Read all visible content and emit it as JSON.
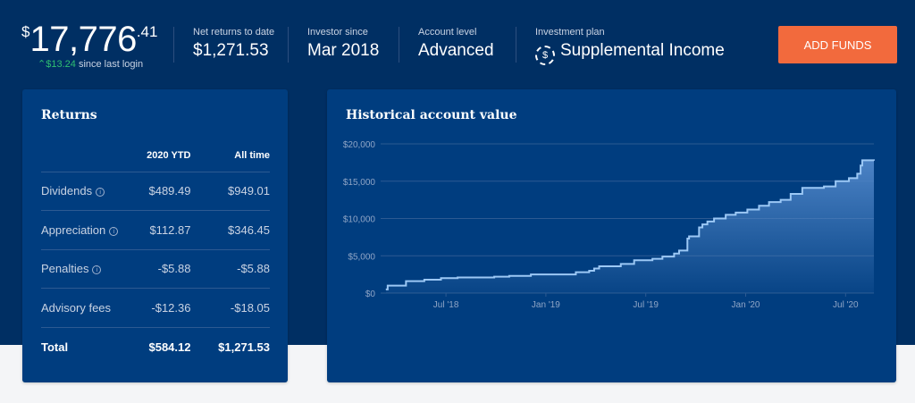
{
  "header": {
    "balance": {
      "currency": "$",
      "whole": "17,776",
      "cents": ".41"
    },
    "delta": {
      "value": "$13.24",
      "label": "since last login"
    },
    "stats": [
      {
        "label": "Net returns to date",
        "value": "$1,271.53"
      },
      {
        "label": "Investor since",
        "value": "Mar 2018"
      },
      {
        "label": "Account level",
        "value": "Advanced"
      },
      {
        "label": "Investment plan",
        "value": "Supplemental Income",
        "icon": "dollar-cycle-icon"
      }
    ],
    "add_funds_label": "ADD FUNDS"
  },
  "returns": {
    "title": "Returns",
    "columns": [
      "",
      "2020 YTD",
      "All time"
    ],
    "rows": [
      {
        "label": "Dividends",
        "info": true,
        "ytd": "$489.49",
        "all": "$949.01"
      },
      {
        "label": "Appreciation",
        "info": true,
        "ytd": "$112.87",
        "all": "$346.45"
      },
      {
        "label": "Penalties",
        "info": true,
        "ytd": "-$5.88",
        "all": "-$5.88"
      },
      {
        "label": "Advisory fees",
        "info": false,
        "ytd": "-$12.36",
        "all": "-$18.05"
      }
    ],
    "total": {
      "label": "Total",
      "ytd": "$584.12",
      "all": "$1,271.53"
    }
  },
  "chart_data": {
    "type": "area",
    "title": "Historical account value",
    "xlabel": "",
    "ylabel": "",
    "x_unit": "months since Jan 2018",
    "xlim": [
      2.4,
      31.7
    ],
    "ylim": [
      0,
      20000
    ],
    "yticks": [
      {
        "v": 0,
        "label": "$0"
      },
      {
        "v": 5000,
        "label": "$5,000"
      },
      {
        "v": 10000,
        "label": "$10,000"
      },
      {
        "v": 15000,
        "label": "$15,000"
      },
      {
        "v": 20000,
        "label": "$20,000"
      }
    ],
    "xticks": [
      {
        "v": 6,
        "label": "Jul '18"
      },
      {
        "v": 12,
        "label": "Jan '19"
      },
      {
        "v": 18,
        "label": "Jul '19"
      },
      {
        "v": 24,
        "label": "Jan '20"
      },
      {
        "v": 30,
        "label": "Jul '20"
      }
    ],
    "grid": true,
    "series": [
      {
        "name": "Account value",
        "points": [
          [
            2.4,
            500
          ],
          [
            2.5,
            1000
          ],
          [
            3.6,
            1600
          ],
          [
            4.7,
            1800
          ],
          [
            5.7,
            2000
          ],
          [
            6.7,
            2100
          ],
          [
            8.9,
            2200
          ],
          [
            9.8,
            2300
          ],
          [
            11.1,
            2500
          ],
          [
            13.8,
            2800
          ],
          [
            14.6,
            3000
          ],
          [
            14.9,
            3300
          ],
          [
            15.2,
            3600
          ],
          [
            16.5,
            3900
          ],
          [
            17.3,
            4400
          ],
          [
            18.4,
            4600
          ],
          [
            19.0,
            4900
          ],
          [
            19.7,
            5300
          ],
          [
            20.0,
            5700
          ],
          [
            20.5,
            7300
          ],
          [
            20.6,
            7600
          ],
          [
            21.2,
            8800
          ],
          [
            21.4,
            9200
          ],
          [
            21.7,
            9600
          ],
          [
            22.1,
            10000
          ],
          [
            22.8,
            10500
          ],
          [
            23.4,
            10800
          ],
          [
            24.1,
            11200
          ],
          [
            24.8,
            11700
          ],
          [
            25.4,
            12200
          ],
          [
            26.1,
            12500
          ],
          [
            26.7,
            13300
          ],
          [
            27.4,
            14100
          ],
          [
            28.7,
            14300
          ],
          [
            29.4,
            15000
          ],
          [
            30.2,
            15400
          ],
          [
            30.7,
            16000
          ],
          [
            30.9,
            17100
          ],
          [
            31.0,
            17800
          ],
          [
            31.7,
            17776
          ]
        ]
      }
    ]
  }
}
